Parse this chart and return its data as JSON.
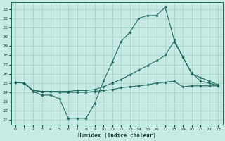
{
  "xlabel": "Humidex (Indice chaleur)",
  "bg_color": "#c8eae4",
  "grid_color": "#9ecfc7",
  "line_color": "#1e6b5e",
  "xlim": [
    -0.5,
    23.5
  ],
  "ylim": [
    20.5,
    33.7
  ],
  "yticks": [
    21,
    22,
    23,
    24,
    25,
    26,
    27,
    28,
    29,
    30,
    31,
    32,
    33
  ],
  "xticks": [
    0,
    1,
    2,
    3,
    4,
    5,
    6,
    7,
    8,
    9,
    10,
    11,
    12,
    13,
    14,
    15,
    16,
    17,
    18,
    19,
    20,
    21,
    22,
    23
  ],
  "line1_x": [
    0,
    1,
    2,
    3,
    4,
    5,
    6,
    7,
    8,
    9,
    10,
    11,
    12,
    13,
    14,
    15,
    16,
    17,
    18,
    19,
    20,
    21,
    22,
    23
  ],
  "line1_y": [
    25.1,
    25.0,
    24.1,
    23.7,
    23.7,
    23.3,
    21.2,
    21.2,
    21.2,
    22.8,
    25.2,
    27.3,
    29.5,
    30.5,
    32.0,
    32.3,
    32.3,
    33.2,
    29.7,
    27.8,
    26.1,
    25.2,
    25.0,
    24.7
  ],
  "line2_x": [
    0,
    1,
    2,
    3,
    4,
    5,
    6,
    7,
    8,
    9,
    10,
    11,
    12,
    13,
    14,
    15,
    16,
    17,
    18,
    19,
    20,
    21,
    22,
    23
  ],
  "line2_y": [
    25.1,
    25.0,
    24.2,
    24.1,
    24.1,
    24.1,
    24.1,
    24.2,
    24.2,
    24.3,
    24.6,
    25.0,
    25.4,
    25.9,
    26.4,
    26.9,
    27.4,
    28.0,
    29.5,
    27.8,
    26.0,
    25.6,
    25.2,
    24.8
  ],
  "line3_x": [
    0,
    1,
    2,
    3,
    4,
    5,
    6,
    7,
    8,
    9,
    10,
    11,
    12,
    13,
    14,
    15,
    16,
    17,
    18,
    19,
    20,
    21,
    22,
    23
  ],
  "line3_y": [
    25.1,
    25.0,
    24.2,
    24.1,
    24.1,
    24.0,
    24.0,
    24.0,
    24.0,
    24.1,
    24.2,
    24.3,
    24.5,
    24.6,
    24.7,
    24.8,
    25.0,
    25.1,
    25.2,
    24.6,
    24.7,
    24.7,
    24.7,
    24.7
  ]
}
